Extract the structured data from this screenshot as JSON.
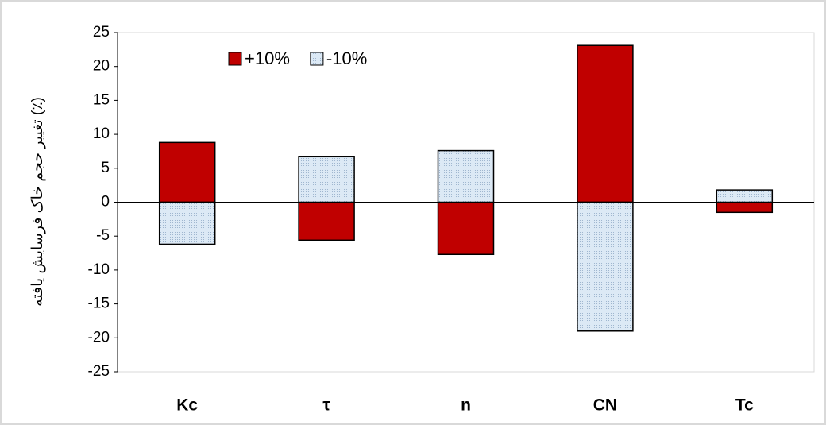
{
  "chart_data": {
    "type": "bar",
    "y_label": "تغییر حجم خاک فرسایش یافته (٪)",
    "categories": [
      "Kc",
      "τ",
      "n",
      "CN",
      "Tc"
    ],
    "series": [
      {
        "name": "+10%",
        "color": "#c00000",
        "values": [
          8.8,
          -5.6,
          -7.7,
          23.1,
          -1.5
        ]
      },
      {
        "name": "-10%",
        "color": "#dce9f5",
        "values": [
          -6.2,
          6.7,
          7.6,
          -19,
          1.8
        ]
      }
    ],
    "ylim": [
      -25,
      25
    ],
    "yticks": [
      -25,
      -20,
      -15,
      -10,
      -5,
      0,
      5,
      10,
      15,
      20,
      25
    ],
    "legend": "top-left"
  }
}
